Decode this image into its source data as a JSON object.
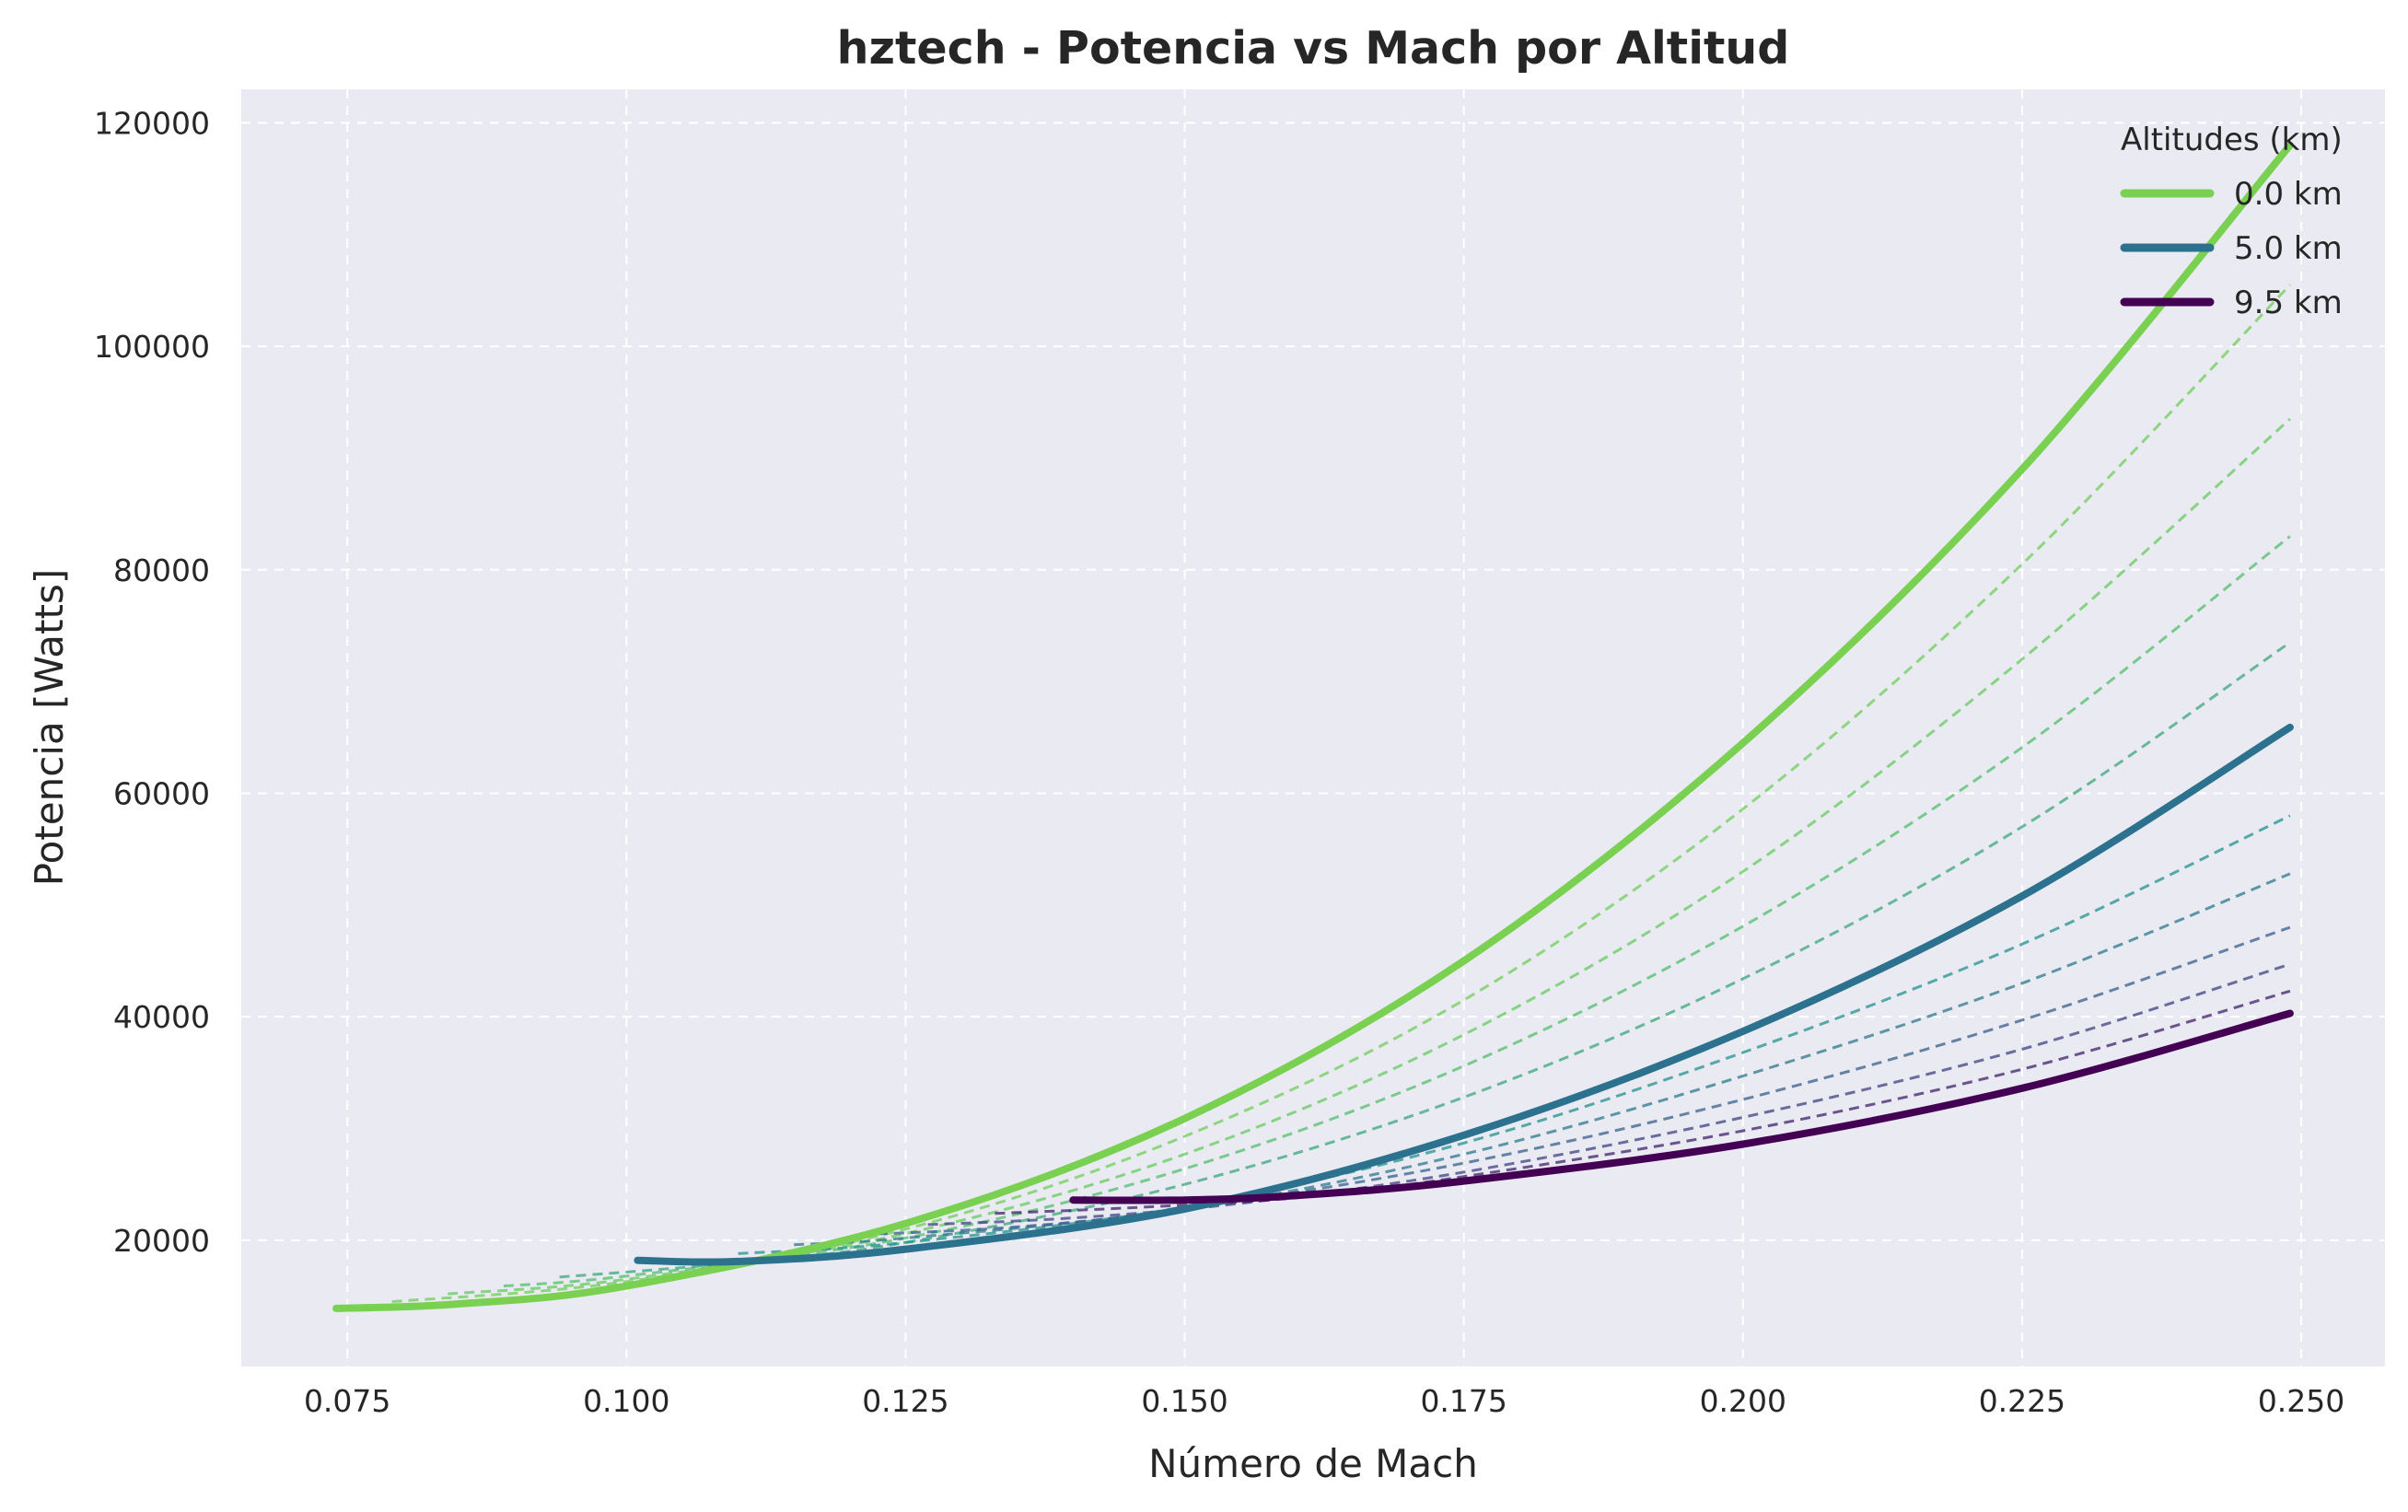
{
  "chart_data": {
    "type": "line",
    "title": "hztech - Potencia vs Mach por Altitud",
    "xlabel": "Número de Mach",
    "ylabel": "Potencia [Watts]",
    "xlim": [
      0.0655,
      0.2575
    ],
    "ylim": [
      8700,
      123000
    ],
    "xticks": [
      0.075,
      0.1,
      0.125,
      0.15,
      0.175,
      0.2,
      0.225,
      0.25
    ],
    "xtick_labels": [
      "0.075",
      "0.100",
      "0.125",
      "0.150",
      "0.175",
      "0.200",
      "0.225",
      "0.250"
    ],
    "yticks": [
      20000,
      40000,
      60000,
      80000,
      100000,
      120000
    ],
    "ytick_labels": [
      "20000",
      "40000",
      "60000",
      "80000",
      "100000",
      "120000"
    ],
    "grid": true,
    "legend": {
      "title": "Altitudes (km)",
      "position": "top-right",
      "entries": [
        "0.0 km",
        "5.0 km",
        "9.5 km"
      ]
    },
    "colors": {
      "alt_0": "#7ad151",
      "alt_5": "#2c728e",
      "alt_9_5": "#440154",
      "background": "#eaeaf2"
    },
    "series": [
      {
        "name": "0.0 km",
        "style": "solid",
        "x": [
          0.074,
          0.085,
          0.1,
          0.125,
          0.15,
          0.175,
          0.2,
          0.225,
          0.249
        ],
        "y": [
          13900,
          14300,
          15900,
          21500,
          30900,
          45000,
          64500,
          89000,
          118000
        ]
      },
      {
        "name": "5.0 km",
        "style": "solid",
        "x": [
          0.101,
          0.11,
          0.125,
          0.15,
          0.175,
          0.2,
          0.225,
          0.249
        ],
        "y": [
          18200,
          18100,
          19200,
          22800,
          29400,
          38700,
          50800,
          65900
        ]
      },
      {
        "name": "9.5 km",
        "style": "solid",
        "x": [
          0.14,
          0.15,
          0.16,
          0.175,
          0.2,
          0.225,
          0.249
        ],
        "y": [
          23600,
          23600,
          24000,
          25300,
          28600,
          33600,
          40300
        ]
      },
      {
        "style": "dashed",
        "x": [
          0.079,
          0.1,
          0.125,
          0.15,
          0.175,
          0.2,
          0.225,
          0.249
        ],
        "y": [
          14500,
          16300,
          21000,
          29300,
          41500,
          58600,
          80500,
          105500
        ]
      },
      {
        "style": "dashed",
        "x": [
          0.084,
          0.1,
          0.125,
          0.15,
          0.175,
          0.2,
          0.225,
          0.249
        ],
        "y": [
          15200,
          16500,
          20600,
          27700,
          38400,
          53000,
          72000,
          93500
        ]
      },
      {
        "style": "dashed",
        "x": [
          0.089,
          0.1,
          0.125,
          0.15,
          0.175,
          0.2,
          0.225,
          0.249
        ],
        "y": [
          15900,
          16800,
          20200,
          26400,
          35600,
          48100,
          64100,
          83000
        ]
      },
      {
        "style": "dashed",
        "x": [
          0.094,
          0.11,
          0.125,
          0.15,
          0.175,
          0.2,
          0.225,
          0.249
        ],
        "y": [
          16700,
          18000,
          19800,
          25000,
          32800,
          43400,
          57000,
          73500
        ]
      },
      {
        "style": "dashed",
        "x": [
          0.11,
          0.125,
          0.15,
          0.175,
          0.2,
          0.225,
          0.249
        ],
        "y": [
          18800,
          19800,
          23000,
          28700,
          36800,
          46500,
          58000
        ]
      },
      {
        "style": "dashed",
        "x": [
          0.115,
          0.125,
          0.15,
          0.175,
          0.2,
          0.225,
          0.249
        ],
        "y": [
          19600,
          20200,
          22800,
          27700,
          34700,
          43000,
          52800
        ]
      },
      {
        "style": "dashed",
        "x": [
          0.121,
          0.135,
          0.15,
          0.175,
          0.2,
          0.225,
          0.249
        ],
        "y": [
          20500,
          21200,
          22800,
          26900,
          32600,
          39700,
          48000
        ]
      },
      {
        "style": "dashed",
        "x": [
          0.127,
          0.14,
          0.155,
          0.175,
          0.2,
          0.225,
          0.249
        ],
        "y": [
          21400,
          22000,
          23300,
          26100,
          31000,
          37100,
          44700
        ]
      },
      {
        "style": "dashed",
        "x": [
          0.133,
          0.145,
          0.16,
          0.175,
          0.2,
          0.225,
          0.249
        ],
        "y": [
          22400,
          22900,
          23800,
          25700,
          29800,
          35300,
          42300
        ]
      }
    ]
  }
}
